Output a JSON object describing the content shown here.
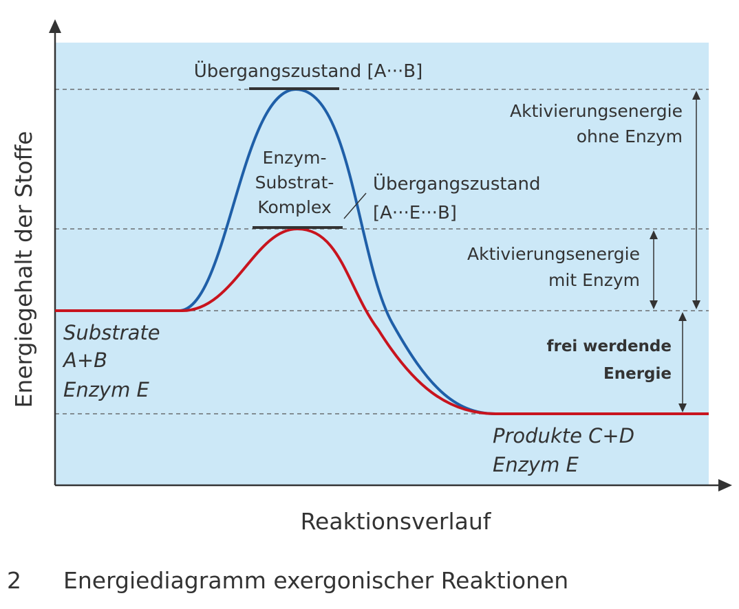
{
  "axes": {
    "y_label": "Energiegehalt der Stoffe",
    "x_label": "Reaktionsverlauf"
  },
  "labels": {
    "transition_no_enzyme": "Übergangszustand [A···B]",
    "enzyme_complex": [
      "Enzym-",
      "Substrat-",
      "Komplex"
    ],
    "transition_with_enzyme": [
      "Übergangszustand",
      "[A···E···B]"
    ],
    "activation_no_enzyme": [
      "Aktivierungsenergie",
      "ohne Enzym"
    ],
    "activation_with_enzyme": [
      "Aktivierungsenergie",
      "mit Enzym"
    ],
    "released_energy": [
      "frei werdende",
      "Energie"
    ],
    "substrates": [
      "Substrate",
      "A+B",
      "Enzym E"
    ],
    "products": [
      "Produkte C+D",
      "Enzym E"
    ]
  },
  "curves": [
    {
      "name": "ohne Enzym",
      "color": "#1f5fa8"
    },
    {
      "name": "mit Enzym",
      "color": "#c8141e"
    }
  ],
  "caption": {
    "number": "2",
    "text": "Energiediagramm exergonischer Reaktionen"
  },
  "colors": {
    "background": "#cce8f7",
    "axis": "#333333"
  }
}
